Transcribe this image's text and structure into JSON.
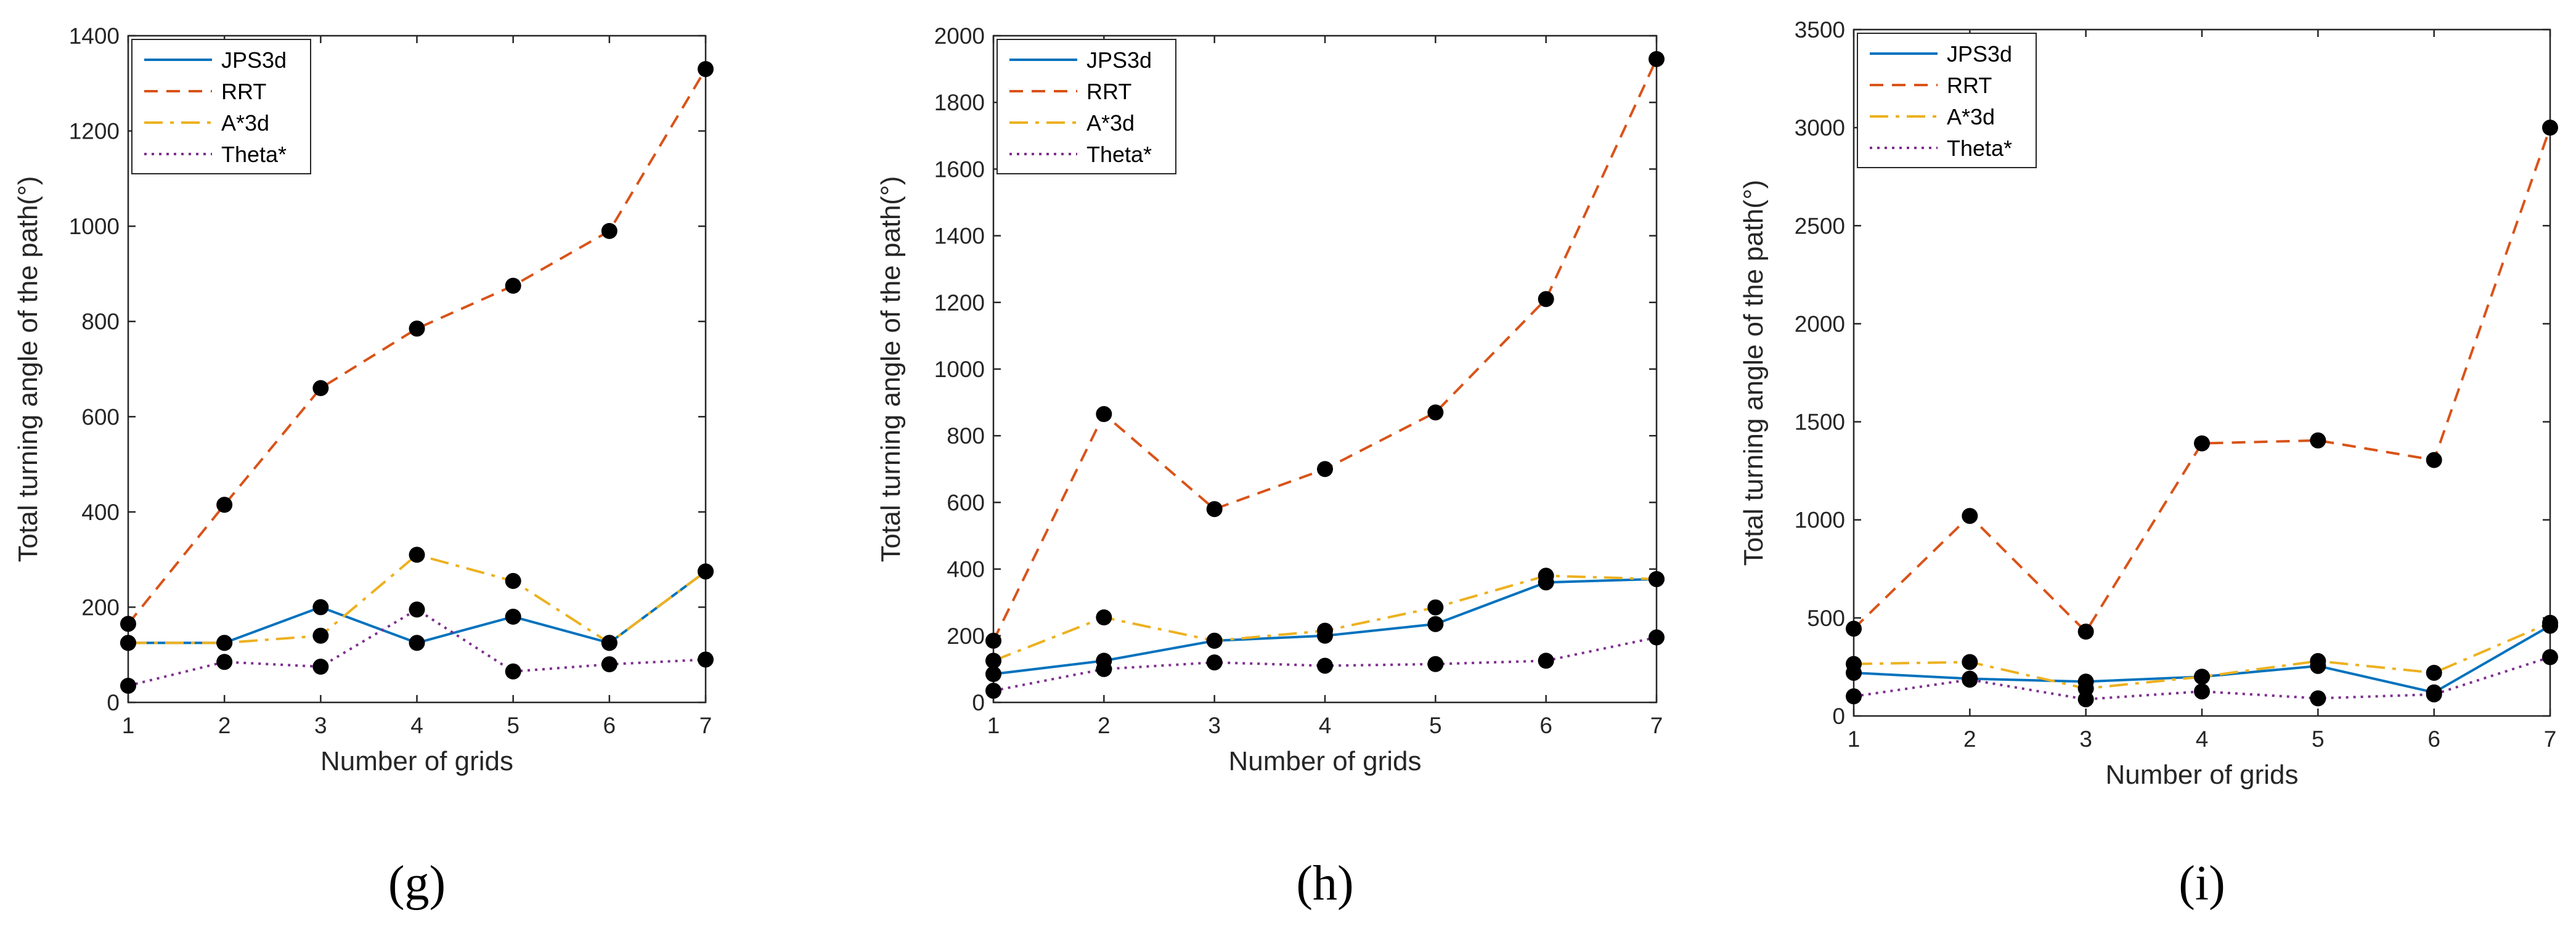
{
  "chart_data": [
    {
      "type": "line",
      "panel_label": "g",
      "title": "",
      "xlabel": "Number of grids",
      "ylabel": "Total turning angle of the path(°)",
      "x": [
        1,
        2,
        3,
        4,
        5,
        6,
        7
      ],
      "xlim": [
        1,
        7
      ],
      "ylim": [
        0,
        1400
      ],
      "yticks": [
        0,
        200,
        400,
        600,
        800,
        1000,
        1200,
        1400
      ],
      "legend_position": "top-left",
      "series": [
        {
          "name": "JPS3d",
          "values": [
            125,
            125,
            200,
            125,
            180,
            125,
            275
          ]
        },
        {
          "name": "RRT",
          "values": [
            165,
            415,
            660,
            785,
            875,
            990,
            1330
          ]
        },
        {
          "name": "A*3d",
          "values": [
            125,
            125,
            140,
            310,
            255,
            125,
            275
          ]
        },
        {
          "name": "Theta*",
          "values": [
            35,
            85,
            75,
            195,
            65,
            80,
            90
          ]
        }
      ]
    },
    {
      "type": "line",
      "panel_label": "h",
      "title": "",
      "xlabel": "Number of grids",
      "ylabel": "Total turning angle of the path(°)",
      "x": [
        1,
        2,
        3,
        4,
        5,
        6,
        7
      ],
      "xlim": [
        1,
        7
      ],
      "ylim": [
        0,
        2000
      ],
      "yticks": [
        0,
        200,
        400,
        600,
        800,
        1000,
        1200,
        1400,
        1600,
        1800,
        2000
      ],
      "legend_position": "top-left",
      "series": [
        {
          "name": "JPS3d",
          "values": [
            85,
            125,
            185,
            200,
            235,
            360,
            370
          ]
        },
        {
          "name": "RRT",
          "values": [
            185,
            865,
            580,
            700,
            870,
            1210,
            1930
          ]
        },
        {
          "name": "A*3d",
          "values": [
            125,
            255,
            185,
            215,
            285,
            380,
            370
          ]
        },
        {
          "name": "Theta*",
          "values": [
            35,
            100,
            120,
            110,
            115,
            125,
            195
          ]
        }
      ]
    },
    {
      "type": "line",
      "panel_label": "i",
      "title": "",
      "xlabel": "Number of grids",
      "ylabel": "Total turning angle of the path(°)",
      "x": [
        1,
        2,
        3,
        4,
        5,
        6,
        7
      ],
      "xlim": [
        1,
        7
      ],
      "ylim": [
        0,
        3500
      ],
      "yticks": [
        0,
        500,
        1000,
        1500,
        2000,
        2500,
        3000,
        3500
      ],
      "legend_position": "top-left",
      "series": [
        {
          "name": "JPS3d",
          "values": [
            220,
            190,
            175,
            200,
            255,
            120,
            460
          ]
        },
        {
          "name": "RRT",
          "values": [
            445,
            1020,
            430,
            1390,
            1405,
            1305,
            3000
          ]
        },
        {
          "name": "A*3d",
          "values": [
            265,
            275,
            140,
            200,
            280,
            220,
            475
          ]
        },
        {
          "name": "Theta*",
          "values": [
            100,
            185,
            85,
            125,
            90,
            110,
            300
          ]
        }
      ]
    }
  ],
  "style": {
    "series_colors": [
      "#0072BD",
      "#D95319",
      "#EDB120",
      "#7E2F8E"
    ],
    "marker_color": "#000000",
    "axis_color": "#262626"
  }
}
